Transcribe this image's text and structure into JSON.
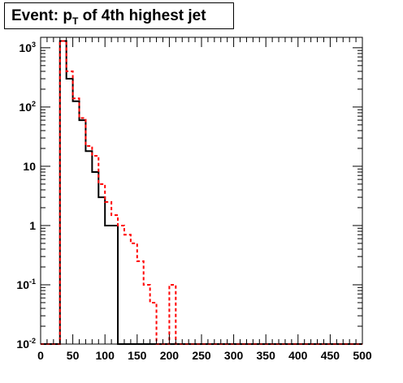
{
  "chart_data": {
    "type": "histogram",
    "title_main": "Event: p",
    "title_sub": "T",
    "title_rest": " of 4th highest jet",
    "xlim": [
      0,
      500
    ],
    "ylim": [
      0.01,
      1500
    ],
    "y_scale": "log",
    "grid": false,
    "bin_width": 10,
    "x_tick_labels": [
      "0",
      "50",
      "100",
      "150",
      "200",
      "250",
      "300",
      "350",
      "400",
      "450",
      "500"
    ],
    "y_tick_labels": [
      {
        "base": "10",
        "exp": "-2",
        "value": 0.01
      },
      {
        "base": "10",
        "exp": "-1",
        "value": 0.1
      },
      {
        "base": "1",
        "exp": "",
        "value": 1
      },
      {
        "base": "10",
        "exp": "",
        "value": 10
      },
      {
        "base": "10",
        "exp": "2",
        "value": 100
      },
      {
        "base": "10",
        "exp": "3",
        "value": 1000
      }
    ],
    "series": [
      {
        "color": "#000000",
        "style": "solid",
        "values": [
          0,
          0,
          0,
          1300,
          300,
          125,
          60,
          18,
          8,
          3,
          1,
          1,
          0,
          0,
          0,
          0,
          0,
          0,
          0,
          0,
          0,
          0,
          0,
          0,
          0,
          0,
          0,
          0,
          0,
          0,
          0,
          0,
          0,
          0,
          0,
          0,
          0,
          0,
          0,
          0,
          0,
          0,
          0,
          0,
          0,
          0,
          0,
          0,
          0,
          0
        ]
      },
      {
        "color": "#ff0000",
        "style": "dotted",
        "values": [
          0,
          0,
          0,
          1300,
          400,
          140,
          65,
          22,
          15,
          5,
          2.5,
          1.5,
          1.0,
          0.7,
          0.5,
          0.25,
          0.1,
          0.05,
          0,
          0,
          0.1,
          0,
          0,
          0,
          0,
          0,
          0,
          0,
          0,
          0,
          0,
          0,
          0,
          0,
          0,
          0,
          0,
          0,
          0,
          0,
          0,
          0,
          0,
          0,
          0,
          0,
          0,
          0,
          0,
          0
        ]
      }
    ]
  }
}
